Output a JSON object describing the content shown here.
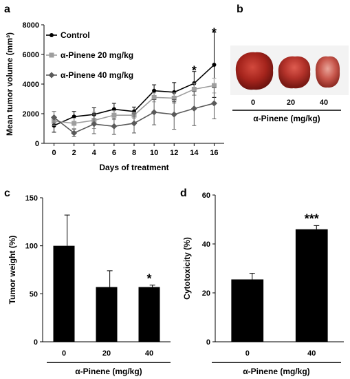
{
  "panels": {
    "a": "a",
    "b": "b",
    "c": "c",
    "d": "d"
  },
  "photo": {
    "tick_labels": [
      "0",
      "20",
      "40"
    ],
    "xlabel": "α-Pinene (mg/kg)"
  },
  "chart_data": [
    {
      "id": "a",
      "type": "line",
      "xlabel": "Days of treatment",
      "ylabel": "Mean tumor volume (mm³)",
      "x": [
        0,
        2,
        4,
        6,
        8,
        10,
        12,
        14,
        16
      ],
      "xlim": [
        -1,
        17
      ],
      "ylim": [
        0,
        8000
      ],
      "yticks": [
        0,
        2000,
        4000,
        6000,
        8000
      ],
      "ytick_labels": [
        "0",
        "2000",
        "4000",
        "6000",
        "8000"
      ],
      "xtick_labels": [
        "0",
        "2",
        "4",
        "6",
        "8",
        "10",
        "12",
        "14",
        "16"
      ],
      "legend_placement": "top-left",
      "series": [
        {
          "name": "Control",
          "color": "#000000",
          "marker": "circle",
          "values": [
            1200,
            1800,
            1950,
            2300,
            2150,
            3550,
            3450,
            4050,
            5300
          ],
          "errors": [
            450,
            350,
            450,
            400,
            300,
            400,
            650,
            800,
            2200
          ]
        },
        {
          "name": "α-Pinene 20 mg/kg",
          "color": "#9e9e9e",
          "marker": "square",
          "values": [
            1500,
            1350,
            1550,
            1900,
            1900,
            3100,
            3050,
            3650,
            3900
          ],
          "errors": [
            300,
            350,
            550,
            300,
            200,
            300,
            350,
            400,
            500
          ]
        },
        {
          "name": "α-Pinene 40 mg/kg",
          "color": "#5a5a5a",
          "marker": "diamond",
          "values": [
            1750,
            700,
            1300,
            1150,
            1350,
            2100,
            1950,
            2350,
            2700
          ],
          "errors": [
            400,
            250,
            650,
            550,
            650,
            850,
            1000,
            1150,
            1050
          ]
        }
      ],
      "annotations": [
        {
          "x": 14,
          "y": 5000,
          "text": "*"
        },
        {
          "x": 16,
          "y": 7550,
          "text": "*"
        }
      ]
    },
    {
      "id": "c",
      "type": "bar",
      "xlabel": "α-Pinene (mg/kg)",
      "ylabel": "Tumor weight (%)",
      "categories": [
        "0",
        "20",
        "40"
      ],
      "values": [
        100,
        57,
        57
      ],
      "errors": [
        32,
        17,
        2
      ],
      "ylim": [
        0,
        150
      ],
      "yticks": [
        0,
        50,
        100,
        150
      ],
      "ytick_labels": [
        "0",
        "50",
        "100",
        "150"
      ],
      "color": "#000000",
      "annotations": [
        {
          "category": "40",
          "y": 60,
          "text": "*"
        }
      ]
    },
    {
      "id": "d",
      "type": "bar",
      "xlabel": "α-Pinene (mg/kg)",
      "ylabel": "Cytotoxicity (%)",
      "categories": [
        "0",
        "40"
      ],
      "values": [
        25.5,
        46
      ],
      "errors": [
        2.5,
        1.5
      ],
      "ylim": [
        0,
        60
      ],
      "yticks": [
        0,
        20,
        40,
        60
      ],
      "ytick_labels": [
        "0",
        "20",
        "40",
        "60"
      ],
      "color": "#000000",
      "annotations": [
        {
          "category": "40",
          "y": 48,
          "text": "***"
        }
      ]
    }
  ]
}
